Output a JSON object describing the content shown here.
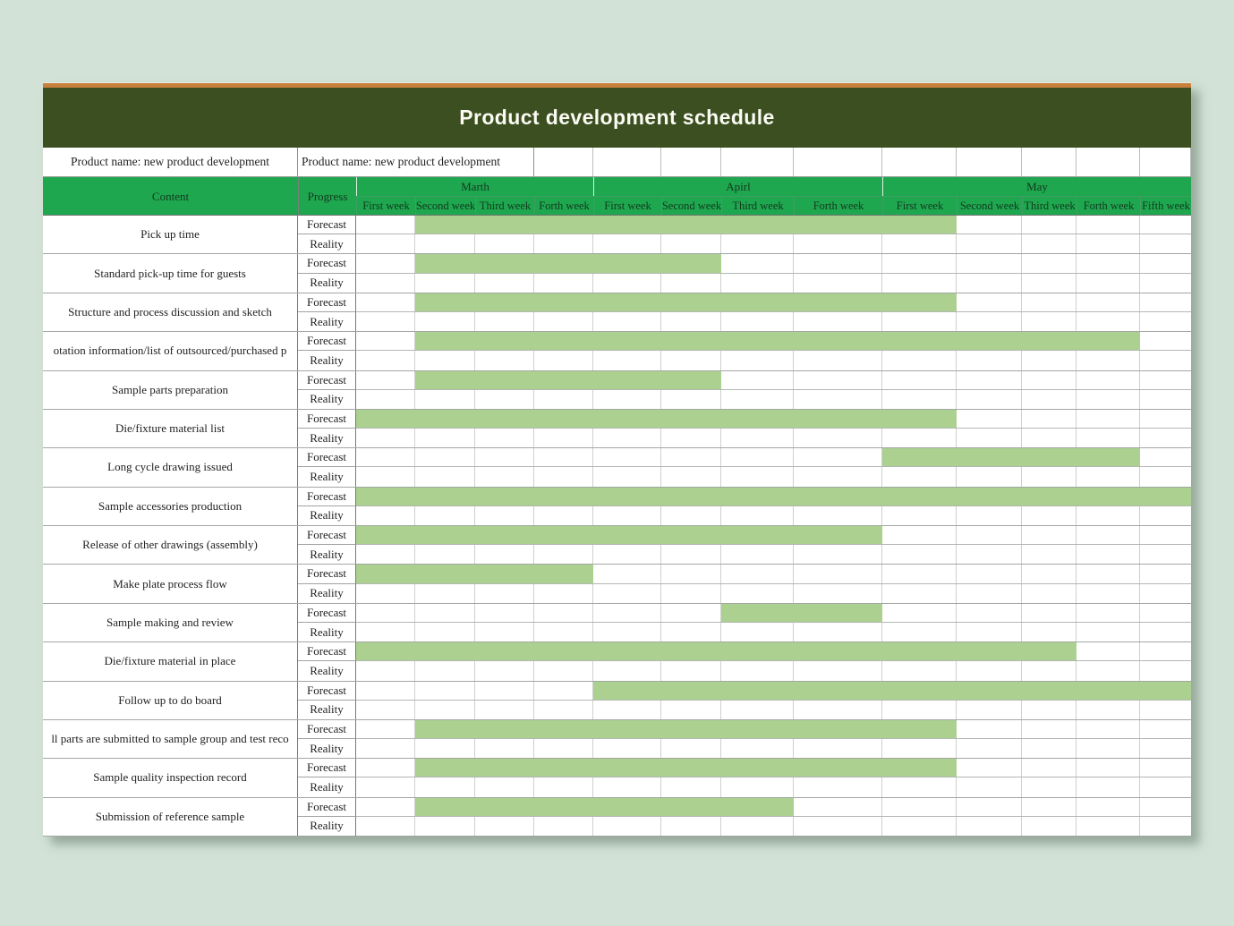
{
  "page": {
    "background_color": "#d2e2d6"
  },
  "sheet": {
    "title": "Product development schedule",
    "colors": {
      "accent_strip": "#c8813c",
      "title_band": "#3b4f20",
      "title_text": "#fbfbf4",
      "header_green": "#1fa750",
      "bar_green": "#abd08f"
    },
    "product_row": {
      "left": "Product name: new product development",
      "right": "Product name: new product development"
    },
    "header": {
      "content": "Content",
      "progress": "Progress"
    },
    "row_labels": {
      "forecast": "Forecast",
      "reality": "Reality"
    }
  },
  "chart_data": {
    "type": "gantt",
    "title": "Product development schedule",
    "timeline_months": [
      {
        "label": "Marth",
        "weeks": [
          "First week",
          "Second week",
          "Third week",
          "Forth week"
        ]
      },
      {
        "label": "Apirl",
        "weeks": [
          "First week",
          "Second week",
          "Third week",
          "Forth week"
        ]
      },
      {
        "label": "May",
        "weeks": [
          "First week",
          "Second week",
          "Third week",
          "Forth week",
          "Fifth week"
        ]
      }
    ],
    "rows_per_task": [
      "Forecast",
      "Reality"
    ],
    "bar_color": "#abd08f",
    "week_index_note": "spans are 1-based inclusive indices over the 13 week columns (Marth W1 ... May W5)",
    "tasks": [
      {
        "name": "Pick up time",
        "forecast_span": [
          2,
          9
        ],
        "reality_span": null
      },
      {
        "name": "Standard pick-up time for guests",
        "forecast_span": [
          2,
          6
        ],
        "reality_span": null
      },
      {
        "name": "Structure and process discussion and sketch",
        "forecast_span": [
          2,
          9
        ],
        "reality_span": null
      },
      {
        "name": "otation information/list of outsourced/purchased p",
        "forecast_span": [
          2,
          12
        ],
        "reality_span": null
      },
      {
        "name": "Sample parts preparation",
        "forecast_span": [
          2,
          6
        ],
        "reality_span": null
      },
      {
        "name": "Die/fixture material list",
        "forecast_span": [
          1,
          9
        ],
        "reality_span": null
      },
      {
        "name": "Long cycle drawing issued",
        "forecast_span": [
          9,
          12
        ],
        "reality_span": null
      },
      {
        "name": "Sample accessories production",
        "forecast_span": [
          1,
          13
        ],
        "reality_span": null
      },
      {
        "name": "Release of other drawings (assembly)",
        "forecast_span": [
          1,
          8
        ],
        "reality_span": null
      },
      {
        "name": "Make plate process flow",
        "forecast_span": [
          1,
          4
        ],
        "reality_span": null
      },
      {
        "name": "Sample making and review",
        "forecast_span": [
          7,
          8
        ],
        "reality_span": null
      },
      {
        "name": "Die/fixture material in place",
        "forecast_span": [
          1,
          11
        ],
        "reality_span": null
      },
      {
        "name": "Follow up to do board",
        "forecast_span": [
          5,
          13
        ],
        "reality_span": null
      },
      {
        "name": "ll parts are submitted to sample group and test reco",
        "forecast_span": [
          2,
          9
        ],
        "reality_span": null
      },
      {
        "name": "Sample quality inspection record",
        "forecast_span": [
          2,
          9
        ],
        "reality_span": null
      },
      {
        "name": "Submission of reference sample",
        "forecast_span": [
          2,
          7
        ],
        "reality_span": null
      }
    ]
  }
}
